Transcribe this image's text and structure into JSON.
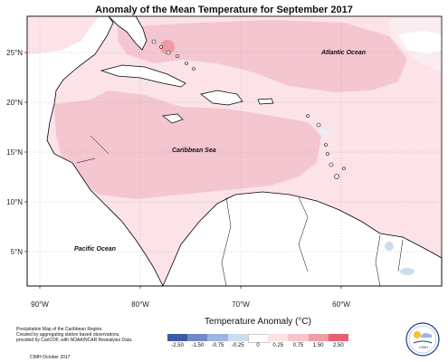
{
  "title": "Anomaly of the Mean Temperature for September 2017",
  "lat_labels": [
    "25°N",
    "20°N",
    "15°N",
    "10°N",
    "5°N"
  ],
  "lon_labels": [
    "90°W",
    "80°W",
    "70°W",
    "60°W"
  ],
  "places": {
    "atlantic": "Atlantic Ocean",
    "caribbean": "Caribbean Sea",
    "pacific": "Pacific Ocean"
  },
  "footnote": {
    "line1": "Precipitation Map of the Caribbean Region.",
    "line2": "Created by aggregating station based observations,",
    "line3": "provided by CariCOF, with NOAA/NCAR Reanalysis Data.",
    "credit": "CIMH October 2017"
  },
  "legend": {
    "title": "Temperature Anomaly (°C)",
    "ticks": [
      "-2.50",
      "-1.50",
      "-0.75",
      "-0.25",
      "0",
      "0.25",
      "0.75",
      "1.50",
      "2.50"
    ],
    "colors": [
      "#3b5aa8",
      "#7189c6",
      "#9fb4de",
      "#cfdcef",
      "#ffffff",
      "#fbe0e4",
      "#f7c4cb",
      "#f29aa6",
      "#e8606f"
    ]
  },
  "logo": {
    "text": "CIMH"
  },
  "colors": {
    "anomaly_light": "#fbe3e8",
    "anomaly_medium": "#f4c6cf",
    "anomaly_high": "#ee9aa6",
    "land": "#ffffff",
    "coast": "#000000"
  }
}
